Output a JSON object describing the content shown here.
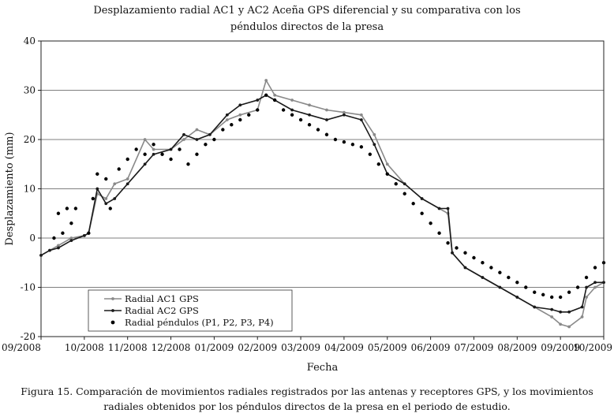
{
  "chart_data": {
    "type": "line",
    "title": "Desplazamiento radial AC1 y AC2 Aceña GPS diferencial y su comparativa con los",
    "title_line2": "péndulos directos de la presa",
    "xlabel": "Fecha",
    "ylabel": "Desplazamiento (mm)",
    "ylim": [
      -20,
      40
    ],
    "yticks": [
      -20,
      -10,
      0,
      10,
      20,
      30,
      40
    ],
    "xlim": [
      0,
      13
    ],
    "xtick_labels": [
      "09/2008",
      "10/2008",
      "11/2008",
      "12/2008",
      "01/2009",
      "02/2009",
      "03/2009",
      "04/2009",
      "05/2009",
      "06/2009",
      "07/2009",
      "08/2009",
      "09/2009",
      "10/2009"
    ],
    "grid": "horizontal",
    "legend_position": "bottom-left",
    "series": [
      {
        "name": "Radial AC1 GPS",
        "style": "line-marker",
        "color": "#8a8a8a",
        "points": [
          [
            0,
            -3.5
          ],
          [
            0.2,
            -2.5
          ],
          [
            0.4,
            -1.5
          ],
          [
            0.7,
            0
          ],
          [
            1.0,
            0.5
          ],
          [
            1.1,
            1
          ],
          [
            1.3,
            9
          ],
          [
            1.5,
            8
          ],
          [
            1.7,
            11
          ],
          [
            2.0,
            12
          ],
          [
            2.4,
            20
          ],
          [
            2.6,
            18
          ],
          [
            3.0,
            18
          ],
          [
            3.3,
            20
          ],
          [
            3.6,
            22
          ],
          [
            3.9,
            21
          ],
          [
            4.3,
            24
          ],
          [
            4.6,
            25
          ],
          [
            5.0,
            26
          ],
          [
            5.2,
            32
          ],
          [
            5.4,
            29
          ],
          [
            5.8,
            28
          ],
          [
            6.2,
            27
          ],
          [
            6.6,
            26
          ],
          [
            7.0,
            25.5
          ],
          [
            7.4,
            25
          ],
          [
            7.7,
            21
          ],
          [
            8.0,
            15
          ],
          [
            8.4,
            11
          ],
          [
            8.8,
            8
          ],
          [
            9.2,
            6
          ],
          [
            9.4,
            5
          ],
          [
            9.5,
            -3
          ],
          [
            9.8,
            -6
          ],
          [
            10.2,
            -8
          ],
          [
            10.6,
            -10
          ],
          [
            11.0,
            -12
          ],
          [
            11.4,
            -14
          ],
          [
            11.8,
            -16
          ],
          [
            12.0,
            -17.5
          ],
          [
            12.2,
            -18
          ],
          [
            12.5,
            -16
          ],
          [
            12.6,
            -12
          ],
          [
            12.8,
            -10
          ],
          [
            13.0,
            -9
          ]
        ]
      },
      {
        "name": "Radial AC2 GPS",
        "style": "line-marker",
        "color": "#1a1a1a",
        "points": [
          [
            0,
            -3.5
          ],
          [
            0.2,
            -2.5
          ],
          [
            0.4,
            -2
          ],
          [
            0.7,
            -0.5
          ],
          [
            1.0,
            0.5
          ],
          [
            1.1,
            1
          ],
          [
            1.3,
            10
          ],
          [
            1.5,
            7
          ],
          [
            1.7,
            8
          ],
          [
            2.0,
            11
          ],
          [
            2.4,
            15
          ],
          [
            2.6,
            17
          ],
          [
            3.0,
            18
          ],
          [
            3.3,
            21
          ],
          [
            3.6,
            20
          ],
          [
            3.9,
            21
          ],
          [
            4.3,
            25
          ],
          [
            4.6,
            27
          ],
          [
            5.0,
            28
          ],
          [
            5.2,
            29
          ],
          [
            5.4,
            28
          ],
          [
            5.8,
            26
          ],
          [
            6.2,
            25
          ],
          [
            6.6,
            24
          ],
          [
            7.0,
            25
          ],
          [
            7.4,
            24
          ],
          [
            7.7,
            19
          ],
          [
            8.0,
            13
          ],
          [
            8.4,
            11
          ],
          [
            8.8,
            8
          ],
          [
            9.2,
            6
          ],
          [
            9.4,
            6
          ],
          [
            9.5,
            -3
          ],
          [
            9.8,
            -6
          ],
          [
            10.2,
            -8
          ],
          [
            10.6,
            -10
          ],
          [
            11.0,
            -12
          ],
          [
            11.4,
            -14
          ],
          [
            11.8,
            -14.5
          ],
          [
            12.0,
            -15
          ],
          [
            12.2,
            -15
          ],
          [
            12.5,
            -14
          ],
          [
            12.6,
            -10
          ],
          [
            12.8,
            -9
          ],
          [
            13.0,
            -9
          ]
        ]
      },
      {
        "name": "Radial péndulos (P1, P2, P3, P4)",
        "style": "dots",
        "color": "#000000",
        "points": [
          [
            0.3,
            0
          ],
          [
            0.4,
            5
          ],
          [
            0.5,
            1
          ],
          [
            0.6,
            6
          ],
          [
            0.7,
            3
          ],
          [
            0.8,
            6
          ],
          [
            1.1,
            1
          ],
          [
            1.2,
            8
          ],
          [
            1.3,
            13
          ],
          [
            1.5,
            12
          ],
          [
            1.6,
            6
          ],
          [
            1.8,
            14
          ],
          [
            2.0,
            16
          ],
          [
            2.2,
            18
          ],
          [
            2.4,
            17
          ],
          [
            2.6,
            19
          ],
          [
            2.8,
            17
          ],
          [
            3.0,
            16
          ],
          [
            3.2,
            18
          ],
          [
            3.4,
            15
          ],
          [
            3.6,
            17
          ],
          [
            3.8,
            19
          ],
          [
            4.0,
            20
          ],
          [
            4.2,
            22
          ],
          [
            4.4,
            23
          ],
          [
            4.6,
            24
          ],
          [
            4.8,
            25
          ],
          [
            5.0,
            26
          ],
          [
            5.2,
            29
          ],
          [
            5.4,
            28
          ],
          [
            5.6,
            26
          ],
          [
            5.8,
            25
          ],
          [
            6.0,
            24
          ],
          [
            6.2,
            23
          ],
          [
            6.4,
            22
          ],
          [
            6.6,
            21
          ],
          [
            6.8,
            20
          ],
          [
            7.0,
            19.5
          ],
          [
            7.2,
            19
          ],
          [
            7.4,
            18.5
          ],
          [
            7.6,
            17
          ],
          [
            7.8,
            15
          ],
          [
            8.0,
            13
          ],
          [
            8.2,
            11
          ],
          [
            8.4,
            9
          ],
          [
            8.6,
            7
          ],
          [
            8.8,
            5
          ],
          [
            9.0,
            3
          ],
          [
            9.2,
            1
          ],
          [
            9.4,
            -1
          ],
          [
            9.6,
            -2
          ],
          [
            9.8,
            -3
          ],
          [
            10.0,
            -4
          ],
          [
            10.2,
            -5
          ],
          [
            10.4,
            -6
          ],
          [
            10.6,
            -7
          ],
          [
            10.8,
            -8
          ],
          [
            11.0,
            -9
          ],
          [
            11.2,
            -10
          ],
          [
            11.4,
            -11
          ],
          [
            11.6,
            -11.5
          ],
          [
            11.8,
            -12
          ],
          [
            12.0,
            -12
          ],
          [
            12.2,
            -11
          ],
          [
            12.4,
            -10
          ],
          [
            12.6,
            -8
          ],
          [
            12.8,
            -6
          ],
          [
            13.0,
            -5
          ]
        ]
      }
    ]
  },
  "caption_line1": "Figura 15. Comparación de movimientos radiales registrados por las antenas y receptores GPS, y los movimientos",
  "caption_line2": "radiales obtenidos por los péndulos directos de la presa en el periodo de estudio."
}
